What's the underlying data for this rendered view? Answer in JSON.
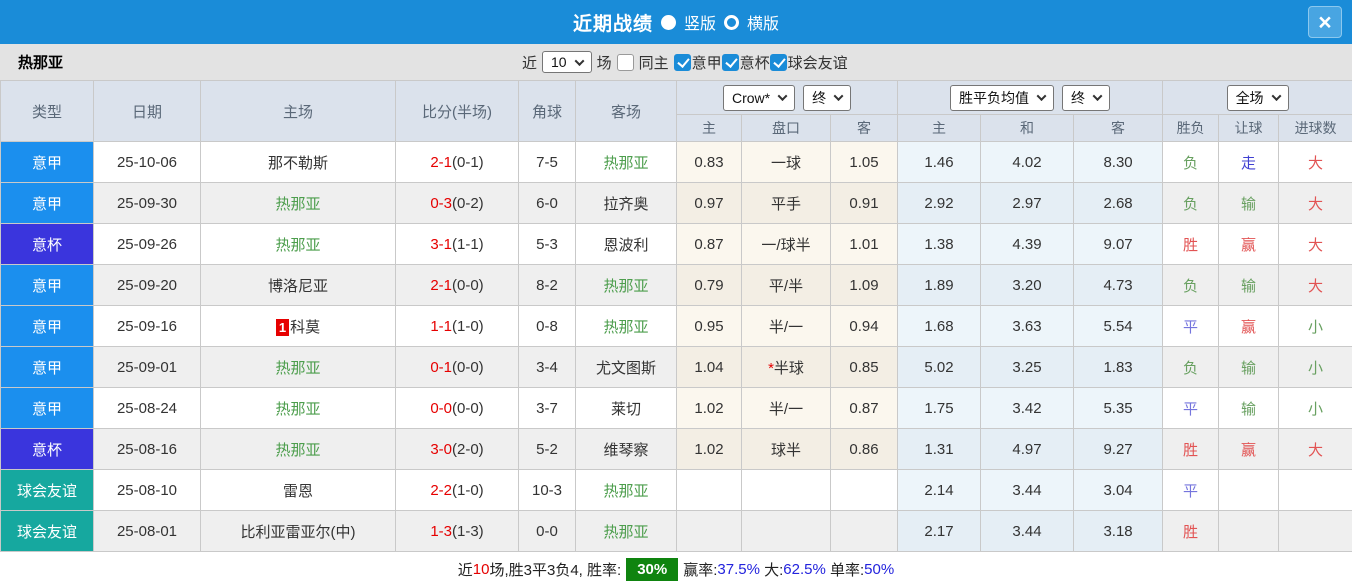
{
  "palette": {
    "topbar_blue": "#1a8cd8",
    "serie_a_blue": "#1b8fee",
    "cup_blue": "#3a35dd",
    "friendly_teal": "#16a89f",
    "team_green": "#4d9e4d",
    "score_red": "#e60000",
    "badge_green": "#0f840f"
  },
  "titlebar": {
    "title": "近期战绩",
    "vertical_label": "竖版",
    "horizontal_label": "横版",
    "selected_layout": "竖版",
    "close_glyph": "×"
  },
  "filterbar": {
    "team": "热那亚",
    "recent_label": "近",
    "recent_value": "10",
    "games_label": "场",
    "same_home_label": "同主",
    "same_home_checked": false,
    "leagues": [
      {
        "label": "意甲",
        "checked": true
      },
      {
        "label": "意杯",
        "checked": true
      },
      {
        "label": "球会友谊",
        "checked": true
      }
    ]
  },
  "table": {
    "headers": {
      "main": [
        "类型",
        "日期",
        "主场",
        "比分(半场)",
        "角球",
        "客场"
      ],
      "groups": [
        {
          "selects": [
            "Crow*",
            "终"
          ]
        },
        {
          "selects": [
            "胜平负均值",
            "终"
          ]
        },
        {
          "selects": [
            "全场"
          ]
        }
      ],
      "sub": [
        "主",
        "盘口",
        "客",
        "主",
        "和",
        "客",
        "胜负",
        "让球",
        "进球数"
      ]
    },
    "rows": [
      {
        "type": "意甲",
        "type_class": "serieA",
        "date": "25-10-06",
        "home": "那不勒斯",
        "home_green": false,
        "home_badge": "",
        "score": "2-1",
        "half": "(0-1)",
        "corner": "7-5",
        "away": "热那亚",
        "away_green": true,
        "odds_home": "0.83",
        "handicap": "一球",
        "handicap_star": false,
        "odds_away": "1.05",
        "avg_home": "1.46",
        "avg_draw": "4.02",
        "avg_away": "8.30",
        "wdl": "负",
        "wdl_color": "green",
        "spread": "走",
        "spread_color": "blue2",
        "goals": "大",
        "goals_color": "red"
      },
      {
        "type": "意甲",
        "type_class": "serieA",
        "date": "25-09-30",
        "home": "热那亚",
        "home_green": true,
        "home_badge": "",
        "score": "0-3",
        "half": "(0-2)",
        "corner": "6-0",
        "away": "拉齐奥",
        "away_green": false,
        "odds_home": "0.97",
        "handicap": "平手",
        "handicap_star": false,
        "odds_away": "0.91",
        "avg_home": "2.92",
        "avg_draw": "2.97",
        "avg_away": "2.68",
        "wdl": "负",
        "wdl_color": "green",
        "spread": "输",
        "spread_color": "green",
        "goals": "大",
        "goals_color": "red"
      },
      {
        "type": "意杯",
        "type_class": "cup",
        "date": "25-09-26",
        "home": "热那亚",
        "home_green": true,
        "home_badge": "",
        "score": "3-1",
        "half": "(1-1)",
        "corner": "5-3",
        "away": "恩波利",
        "away_green": false,
        "odds_home": "0.87",
        "handicap": "一/球半",
        "handicap_star": false,
        "odds_away": "1.01",
        "avg_home": "1.38",
        "avg_draw": "4.39",
        "avg_away": "9.07",
        "wdl": "胜",
        "wdl_color": "red",
        "spread": "赢",
        "spread_color": "red",
        "goals": "大",
        "goals_color": "red"
      },
      {
        "type": "意甲",
        "type_class": "serieA",
        "date": "25-09-20",
        "home": "博洛尼亚",
        "home_green": false,
        "home_badge": "",
        "score": "2-1",
        "half": "(0-0)",
        "corner": "8-2",
        "away": "热那亚",
        "away_green": true,
        "odds_home": "0.79",
        "handicap": "平/半",
        "handicap_star": false,
        "odds_away": "1.09",
        "avg_home": "1.89",
        "avg_draw": "3.20",
        "avg_away": "4.73",
        "wdl": "负",
        "wdl_color": "green",
        "spread": "输",
        "spread_color": "green",
        "goals": "大",
        "goals_color": "red"
      },
      {
        "type": "意甲",
        "type_class": "serieA",
        "date": "25-09-16",
        "home": "科莫",
        "home_green": false,
        "home_badge": "1",
        "score": "1-1",
        "half": "(1-0)",
        "corner": "0-8",
        "away": "热那亚",
        "away_green": true,
        "odds_home": "0.95",
        "handicap": "半/一",
        "handicap_star": false,
        "odds_away": "0.94",
        "avg_home": "1.68",
        "avg_draw": "3.63",
        "avg_away": "5.54",
        "wdl": "平",
        "wdl_color": "blue",
        "spread": "赢",
        "spread_color": "red",
        "goals": "小",
        "goals_color": "green"
      },
      {
        "type": "意甲",
        "type_class": "serieA",
        "date": "25-09-01",
        "home": "热那亚",
        "home_green": true,
        "home_badge": "",
        "score": "0-1",
        "half": "(0-0)",
        "corner": "3-4",
        "away": "尤文图斯",
        "away_green": false,
        "odds_home": "1.04",
        "handicap": "半球",
        "handicap_star": true,
        "odds_away": "0.85",
        "avg_home": "5.02",
        "avg_draw": "3.25",
        "avg_away": "1.83",
        "wdl": "负",
        "wdl_color": "green",
        "spread": "输",
        "spread_color": "green",
        "goals": "小",
        "goals_color": "green"
      },
      {
        "type": "意甲",
        "type_class": "serieA",
        "date": "25-08-24",
        "home": "热那亚",
        "home_green": true,
        "home_badge": "",
        "score": "0-0",
        "half": "(0-0)",
        "corner": "3-7",
        "away": "莱切",
        "away_green": false,
        "odds_home": "1.02",
        "handicap": "半/一",
        "handicap_star": false,
        "odds_away": "0.87",
        "avg_home": "1.75",
        "avg_draw": "3.42",
        "avg_away": "5.35",
        "wdl": "平",
        "wdl_color": "blue",
        "spread": "输",
        "spread_color": "green",
        "goals": "小",
        "goals_color": "green"
      },
      {
        "type": "意杯",
        "type_class": "cup",
        "date": "25-08-16",
        "home": "热那亚",
        "home_green": true,
        "home_badge": "",
        "score": "3-0",
        "half": "(2-0)",
        "corner": "5-2",
        "away": "维琴察",
        "away_green": false,
        "odds_home": "1.02",
        "handicap": "球半",
        "handicap_star": false,
        "odds_away": "0.86",
        "avg_home": "1.31",
        "avg_draw": "4.97",
        "avg_away": "9.27",
        "wdl": "胜",
        "wdl_color": "red",
        "spread": "赢",
        "spread_color": "red",
        "goals": "大",
        "goals_color": "red"
      },
      {
        "type": "球会友谊",
        "type_class": "friendly",
        "date": "25-08-10",
        "home": "雷恩",
        "home_green": false,
        "home_badge": "",
        "score": "2-2",
        "half": "(1-0)",
        "corner": "10-3",
        "away": "热那亚",
        "away_green": true,
        "odds_home": "",
        "handicap": "",
        "handicap_star": false,
        "odds_away": "",
        "avg_home": "2.14",
        "avg_draw": "3.44",
        "avg_away": "3.04",
        "wdl": "平",
        "wdl_color": "blue",
        "spread": "",
        "spread_color": "",
        "goals": "",
        "goals_color": ""
      },
      {
        "type": "球会友谊",
        "type_class": "friendly",
        "date": "25-08-01",
        "home": "比利亚雷亚尔(中)",
        "home_green": false,
        "home_badge": "",
        "score": "1-3",
        "half": "(1-3)",
        "corner": "0-0",
        "away": "热那亚",
        "away_green": true,
        "odds_home": "",
        "handicap": "",
        "handicap_star": false,
        "odds_away": "",
        "avg_home": "2.17",
        "avg_draw": "3.44",
        "avg_away": "3.18",
        "wdl": "胜",
        "wdl_color": "red",
        "spread": "",
        "spread_color": "",
        "goals": "",
        "goals_color": ""
      }
    ]
  },
  "footer": {
    "segments": [
      {
        "text": "近",
        "style": "plain"
      },
      {
        "text": "10",
        "style": "red"
      },
      {
        "text": "场,胜3平3负4, 胜率:",
        "style": "plain"
      },
      {
        "text": "30%",
        "style": "badge"
      },
      {
        "text": "赢率:",
        "style": "plain"
      },
      {
        "text": "37.5%",
        "style": "blue"
      },
      {
        "text": " 大:",
        "style": "plain"
      },
      {
        "text": "62.5%",
        "style": "blue"
      },
      {
        "text": " 单率:",
        "style": "plain"
      },
      {
        "text": "50%",
        "style": "blue"
      }
    ]
  }
}
